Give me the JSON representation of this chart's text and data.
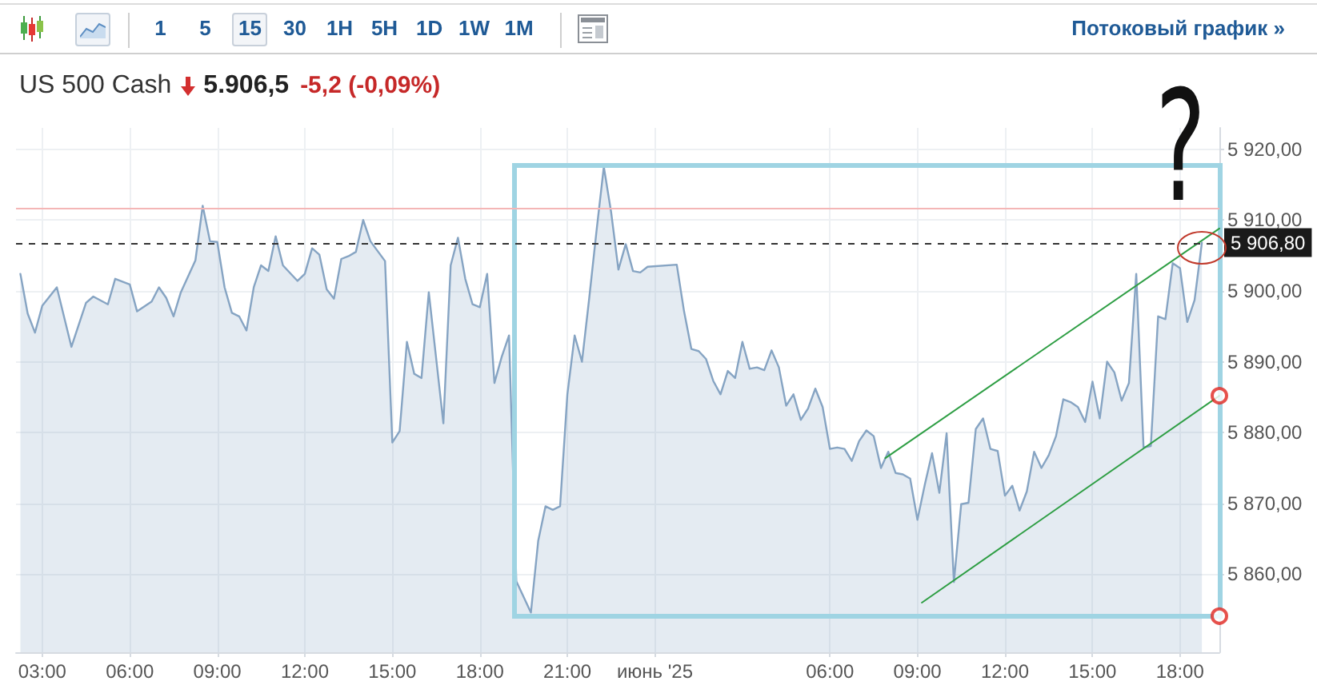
{
  "chart_data": {
    "type": "area",
    "title": "US 500 Cash",
    "subtitle": "5.906,5",
    "annotations": [
      "1 5 15 30 1H 5H 1D 1W 1M",
      "Потоковый график »",
      "-5,2 (-0,09%)",
      "?"
    ],
    "xlim": [
      "2025-05-31T02:06",
      "2025-06-01T19:21"
    ],
    "xticks": [
      {
        "value": "2025-05-31T03:00",
        "label": "03:00"
      },
      {
        "value": "2025-05-31T06:00",
        "label": "06:00"
      },
      {
        "value": "2025-05-31T09:00",
        "label": "09:00"
      },
      {
        "value": "2025-05-31T12:00",
        "label": "12:00"
      },
      {
        "value": "2025-05-31T15:00",
        "label": "15:00"
      },
      {
        "value": "2025-05-31T18:00",
        "label": "18:00"
      },
      {
        "value": "2025-05-31T21:00",
        "label": "21:00"
      },
      {
        "value": "2025-06-01",
        "label": "июнь '25"
      },
      {
        "value": "2025-06-01T06:00",
        "label": "06:00"
      },
      {
        "value": "2025-06-01T09:00",
        "label": "09:00"
      },
      {
        "value": "2025-06-01T12:00",
        "label": "12:00"
      },
      {
        "value": "2025-06-01T15:00",
        "label": "15:00"
      },
      {
        "value": "2025-06-01T18:00",
        "label": "18:00"
      }
    ],
    "ylim": [
      5849,
      5923
    ],
    "yticks": [
      {
        "value": 5860,
        "label": "5 860,00"
      },
      {
        "value": 5870,
        "label": "5 870,00"
      },
      {
        "value": 5880,
        "label": "5 880,00"
      },
      {
        "value": 5890,
        "label": "5 890,00"
      },
      {
        "value": 5900,
        "label": "5 900,00"
      },
      {
        "value": 5910,
        "label": "5 910,00"
      },
      {
        "value": 5920,
        "label": "5 920,00"
      }
    ],
    "grid": true,
    "ref_lines": [
      {
        "axis": "y",
        "value": 5911.6,
        "color": "#f4b6b6"
      },
      {
        "axis": "y",
        "value": 5906.8,
        "label": "5 906,80",
        "color": "#333333",
        "line_style": "dashed"
      }
    ],
    "series": [
      {
        "color": "#86a4c3",
        "x": [
          "2025-05-31T02:15",
          "2025-05-31T02:30",
          "2025-05-31T02:45",
          "2025-05-31T03:00",
          "2025-05-31T03:30",
          "2025-05-31T04:00",
          "2025-05-31T04:30",
          "2025-05-31T04:45",
          "2025-05-31T05:15",
          "2025-05-31T05:30",
          "2025-05-31T06:00",
          "2025-05-31T06:15",
          "2025-05-31T06:45",
          "2025-05-31T07:00",
          "2025-05-31T07:15",
          "2025-05-31T07:30",
          "2025-05-31T07:45",
          "2025-05-31T08:15",
          "2025-05-31T08:30",
          "2025-05-31T08:45",
          "2025-05-31T09:00",
          "2025-05-31T09:15",
          "2025-05-31T09:30",
          "2025-05-31T09:45",
          "2025-05-31T10:00",
          "2025-05-31T10:15",
          "2025-05-31T10:30",
          "2025-05-31T10:45",
          "2025-05-31T11:00",
          "2025-05-31T11:15",
          "2025-05-31T11:45",
          "2025-05-31T12:00",
          "2025-05-31T12:15",
          "2025-05-31T12:30",
          "2025-05-31T12:45",
          "2025-05-31T13:00",
          "2025-05-31T13:15",
          "2025-05-31T13:30",
          "2025-05-31T13:45",
          "2025-05-31T14:00",
          "2025-05-31T14:15",
          "2025-05-31T14:45",
          "2025-05-31T15:00",
          "2025-05-31T15:15",
          "2025-05-31T15:30",
          "2025-05-31T15:45",
          "2025-05-31T16:00",
          "2025-05-31T16:15",
          "2025-05-31T16:45",
          "2025-05-31T17:00",
          "2025-05-31T17:15",
          "2025-05-31T17:30",
          "2025-05-31T17:45",
          "2025-05-31T18:00",
          "2025-05-31T18:15",
          "2025-05-31T18:30",
          "2025-05-31T18:45",
          "2025-05-31T19:00",
          "2025-05-31T19:15",
          "2025-05-31T19:30",
          "2025-05-31T19:45",
          "2025-05-31T20:00",
          "2025-05-31T20:15",
          "2025-05-31T20:30",
          "2025-05-31T20:45",
          "2025-05-31T21:00",
          "2025-05-31T21:15",
          "2025-05-31T21:30",
          "2025-05-31T21:45",
          "2025-05-31T22:00",
          "2025-05-31T22:15",
          "2025-05-31T22:30",
          "2025-05-31T22:45",
          "2025-05-31T23:00",
          "2025-05-31T23:15",
          "2025-05-31T23:30",
          "2025-05-31T23:45",
          "2025-06-01T00:45",
          "2025-06-01T01:00",
          "2025-06-01T01:15",
          "2025-06-01T01:30",
          "2025-06-01T01:45",
          "2025-06-01T02:00",
          "2025-06-01T02:15",
          "2025-06-01T02:30",
          "2025-06-01T02:45",
          "2025-06-01T03:00",
          "2025-06-01T03:15",
          "2025-06-01T03:30",
          "2025-06-01T03:45",
          "2025-06-01T04:00",
          "2025-06-01T04:15",
          "2025-06-01T04:30",
          "2025-06-01T04:45",
          "2025-06-01T05:00",
          "2025-06-01T05:15",
          "2025-06-01T05:30",
          "2025-06-01T05:45",
          "2025-06-01T06:00",
          "2025-06-01T06:15",
          "2025-06-01T06:30",
          "2025-06-01T06:45",
          "2025-06-01T07:00",
          "2025-06-01T07:15",
          "2025-06-01T07:30",
          "2025-06-01T07:45",
          "2025-06-01T08:00",
          "2025-06-01T08:15",
          "2025-06-01T08:30",
          "2025-06-01T08:45",
          "2025-06-01T09:00",
          "2025-06-01T09:15",
          "2025-06-01T09:30",
          "2025-06-01T09:45",
          "2025-06-01T10:00",
          "2025-06-01T10:15",
          "2025-06-01T10:30",
          "2025-06-01T10:45",
          "2025-06-01T11:00",
          "2025-06-01T11:15",
          "2025-06-01T11:30",
          "2025-06-01T11:45",
          "2025-06-01T12:00",
          "2025-06-01T12:15",
          "2025-06-01T12:30",
          "2025-06-01T12:45",
          "2025-06-01T13:00",
          "2025-06-01T13:15",
          "2025-06-01T13:30",
          "2025-06-01T13:45",
          "2025-06-01T14:00",
          "2025-06-01T14:15",
          "2025-06-01T14:30",
          "2025-06-01T14:45",
          "2025-06-01T15:00",
          "2025-06-01T15:15",
          "2025-06-01T15:30",
          "2025-06-01T15:45",
          "2025-06-01T16:00",
          "2025-06-01T16:15",
          "2025-06-01T16:30",
          "2025-06-01T16:45",
          "2025-06-01T17:00",
          "2025-06-01T17:15",
          "2025-06-01T17:30",
          "2025-06-01T17:45",
          "2025-06-01T18:00",
          "2025-06-01T18:15",
          "2025-06-01T18:30",
          "2025-06-01T18:45"
        ],
        "values": [
          5902.4,
          5896.8,
          5894.1,
          5897.9,
          5900.5,
          5892.1,
          5898.3,
          5899.2,
          5898.1,
          5901.7,
          5900.9,
          5897.1,
          5898.5,
          5900.5,
          5899.0,
          5896.4,
          5899.8,
          5904.3,
          5912.0,
          5907.0,
          5906.9,
          5900.5,
          5896.9,
          5896.4,
          5894.4,
          5900.5,
          5903.6,
          5902.8,
          5907.7,
          5903.6,
          5901.4,
          5902.4,
          5906.0,
          5905.1,
          5900.2,
          5898.9,
          5904.5,
          5904.9,
          5905.5,
          5910.0,
          5907.0,
          5904.2,
          5878.6,
          5880.2,
          5892.8,
          5888.3,
          5887.7,
          5899.8,
          5881.3,
          5903.6,
          5907.5,
          5901.7,
          5898.1,
          5897.7,
          5902.4,
          5887.0,
          5890.7,
          5893.7,
          5859.0,
          5856.8,
          5854.6,
          5864.7,
          5869.6,
          5869.1,
          5869.6,
          5885.4,
          5893.7,
          5890.0,
          5899.0,
          5908.5,
          5917.5,
          5911.1,
          5903.0,
          5906.6,
          5902.8,
          5902.6,
          5903.4,
          5903.7,
          5897.1,
          5891.8,
          5891.5,
          5890.4,
          5887.3,
          5885.4,
          5888.7,
          5887.7,
          5892.8,
          5889.0,
          5889.2,
          5888.8,
          5891.6,
          5889.2,
          5883.8,
          5885.4,
          5881.8,
          5883.4,
          5886.2,
          5883.6,
          5877.7,
          5877.9,
          5877.7,
          5876.0,
          5878.8,
          5880.3,
          5879.5,
          5875.0,
          5877.3,
          5874.3,
          5874.1,
          5873.5,
          5867.7,
          5872.6,
          5877.1,
          5871.5,
          5879.9,
          5858.9,
          5869.9,
          5870.1,
          5880.5,
          5882.0,
          5877.7,
          5877.4,
          5871.1,
          5872.5,
          5869.0,
          5871.7,
          5877.3,
          5875.0,
          5876.8,
          5879.5,
          5884.7,
          5884.3,
          5883.6,
          5881.5,
          5887.2,
          5882.0,
          5890.0,
          5888.5,
          5884.5,
          5887.0,
          5902.4,
          5877.9,
          5878.1,
          5896.4,
          5896.0,
          5903.9,
          5903.2,
          5895.6,
          5898.7,
          5906.8
        ]
      },
      {
        "type": "line",
        "color": "#2e9e44",
        "x": [
          "2025-06-01T07:54",
          "2025-06-01T19:21"
        ],
        "values": [
          5876.4,
          5908.8
        ]
      },
      {
        "type": "line",
        "color": "#2e9e44",
        "x": [
          "2025-06-01T09:09",
          "2025-06-01T19:21"
        ],
        "values": [
          5856.0,
          5885.2
        ]
      },
      {
        "type": "scatter",
        "color": "#e0261f",
        "marker": "circle",
        "x": [
          "2025-06-01T19:21",
          "2025-06-01T19:21"
        ],
        "values": [
          5885.2,
          5854.1
        ]
      }
    ]
  }
}
